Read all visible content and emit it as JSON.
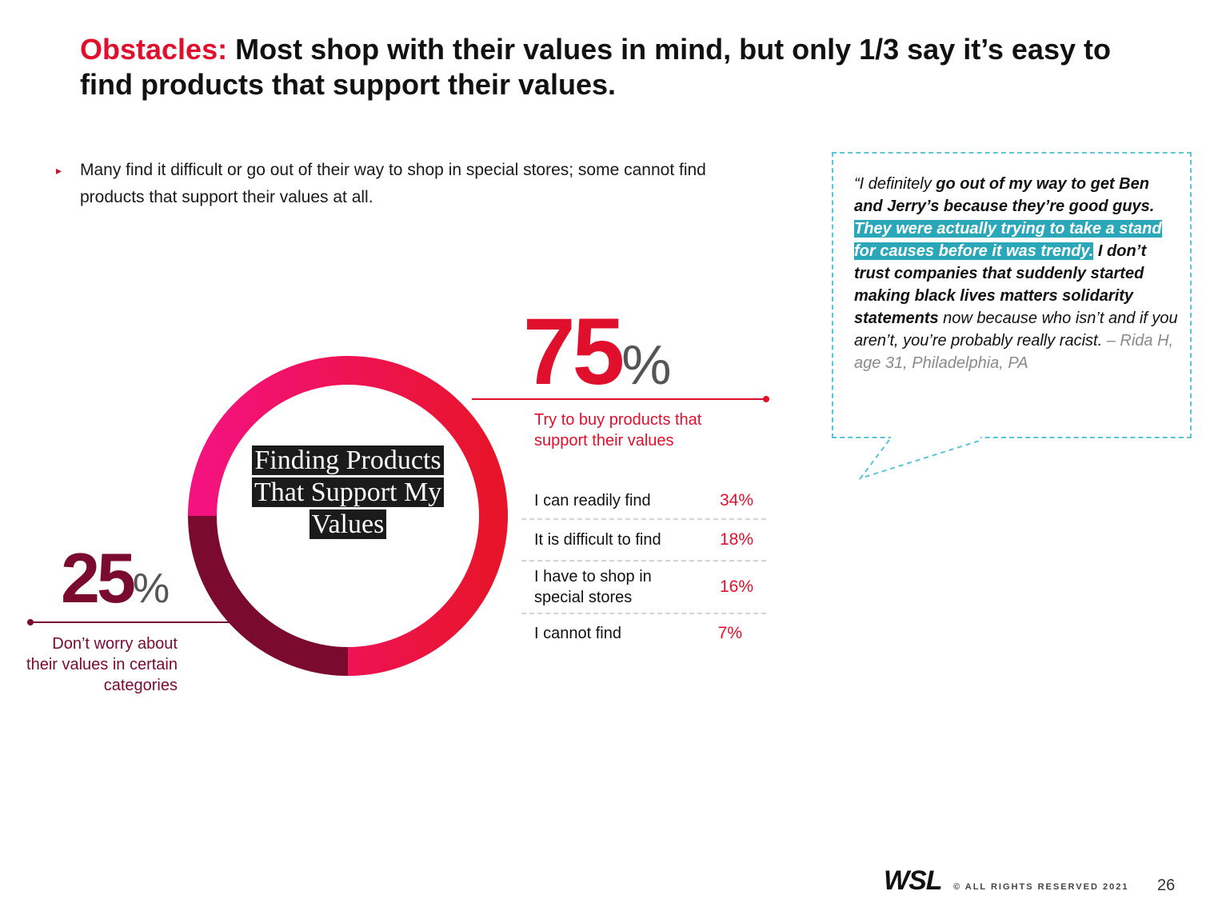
{
  "title": {
    "accent": "Obstacles:",
    "rest": " Most shop with their values in mind, but only 1/3 say it’s easy to find products that support their values."
  },
  "bullet": {
    "marker": "▸",
    "text": "Many find it difficult or go out of their way to shop in special stores; some cannot find products that support their values at all."
  },
  "quote": {
    "part1": "“I definitely ",
    "part2": "go out of my way to get Ben and Jerry’s because they’re good guys.",
    "part3": " ",
    "highlight": "They were actually trying to take a stand for causes before it was trendy.",
    "part4": " I don’t trust companies that suddenly started making black lives matters solidarity statements",
    "part5": " now because who isn’t and if you aren’t, you’re probably really racist.",
    "attribution": " – Rida H, age 31, Philadelphia, PA"
  },
  "chart_data": {
    "type": "pie",
    "title": "Finding Products That Support My Values",
    "slices": [
      {
        "label": "Try to buy products that support their values",
        "value": 75,
        "display": "75",
        "color": "#e0102c"
      },
      {
        "label": "Don’t worry about their values in certain categories",
        "value": 25,
        "display": "25",
        "color": "#7a0a2e"
      }
    ],
    "percent_sign": "%",
    "breakdown": [
      {
        "label": "I can readily find",
        "value": "34%"
      },
      {
        "label": "It is difficult to find",
        "value": "18%"
      },
      {
        "label": "I have to shop in special stores",
        "value": "16%"
      },
      {
        "label": "I cannot find",
        "value": "7%"
      }
    ],
    "colors": {
      "gradient_start": "#f4127f",
      "gradient_end": "#e8142a",
      "dark": "#7a0a2e"
    }
  },
  "footer": {
    "logo": "WSL",
    "copyright": "© ALL RIGHTS RESERVED 2021",
    "page": "26"
  }
}
